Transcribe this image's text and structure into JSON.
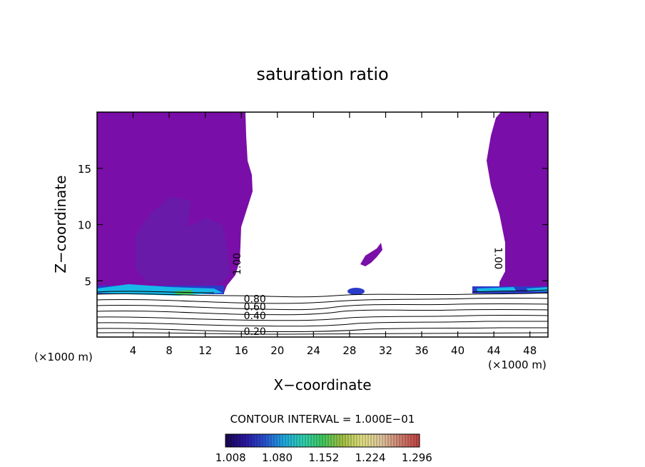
{
  "chart_data": {
    "type": "contour",
    "title": "saturation ratio",
    "xlabel": "X−coordinate",
    "ylabel": "Z−coordinate",
    "x_unit_left": "(×1000 m)",
    "x_unit_right": "(×1000 m)",
    "xlim": [
      0,
      50
    ],
    "ylim": [
      0,
      20
    ],
    "x_ticks": [
      4,
      8,
      12,
      16,
      20,
      24,
      28,
      32,
      36,
      40,
      44,
      48
    ],
    "y_ticks": [
      5,
      10,
      15
    ],
    "contour_interval_label": "CONTOUR INTERVAL = 1.000E−01",
    "contour_labels": [
      {
        "text": "0.20",
        "x": 17.5,
        "y": 0.5
      },
      {
        "text": "0.40",
        "x": 17.5,
        "y": 1.9
      },
      {
        "text": "0.60",
        "x": 17.5,
        "y": 2.7
      },
      {
        "text": "0.80",
        "x": 17.5,
        "y": 3.4
      },
      {
        "text": "1.00",
        "x": 15.5,
        "y": 6.5
      },
      {
        "text": "1.00",
        "x": 44.5,
        "y": 7.0
      }
    ],
    "colorbar": {
      "ticks": [
        "1.008",
        "1.080",
        "1.152",
        "1.224",
        "1.296"
      ],
      "min": 1.0,
      "max": 1.3,
      "colors": [
        "#1a0550",
        "#2a18a0",
        "#2850d0",
        "#20a8e0",
        "#30d0b0",
        "#40c860",
        "#a0c040",
        "#e0e080",
        "#e0c8a0",
        "#d08070",
        "#c04040"
      ]
    },
    "fill_colors": {
      "background": "#7a0ea8",
      "patch": "#6a1aa8",
      "band": "#2a3cc8",
      "cyan": "#18b8e8",
      "green": "#40c060"
    }
  }
}
